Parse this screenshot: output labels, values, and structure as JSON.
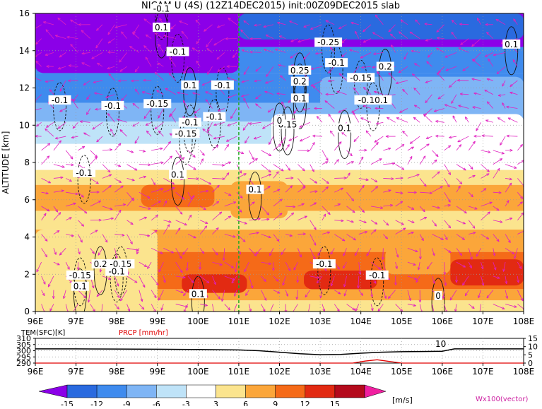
{
  "title": "NICAM U (4S) (12Z14DEC2015) init:00Z09DEC2015 slab",
  "chart_data": [
    {
      "type": "heatmap",
      "title": "NICAM U (4S) (12Z14DEC2015) init:00Z09DEC2015 slab",
      "ylabel": "ALTITUDE [km]",
      "xlim": [
        96,
        108
      ],
      "ylim": [
        0,
        16
      ],
      "x_ticks": [
        "96E",
        "97E",
        "98E",
        "99E",
        "100E",
        "101E",
        "102E",
        "103E",
        "104E",
        "105E",
        "106E",
        "107E",
        "108E"
      ],
      "y_ticks": [
        "0",
        "2",
        "4",
        "6",
        "8",
        "10",
        "12",
        "14",
        "16"
      ],
      "grid": true,
      "marker_longitude": 101,
      "bands": [
        {
          "z0": 0.0,
          "z1": 0.6,
          "u": 4
        },
        {
          "z0": 0.6,
          "z1": 1.2,
          "u": 8
        },
        {
          "z0": 1.2,
          "z1": 2.2,
          "u": 11
        },
        {
          "z0": 2.2,
          "z1": 3.2,
          "u": 9
        },
        {
          "z0": 3.2,
          "z1": 4.4,
          "u": 6
        },
        {
          "z0": 4.4,
          "z1": 5.4,
          "u": 4
        },
        {
          "z0": 5.4,
          "z1": 6.8,
          "u": 7
        },
        {
          "z0": 6.8,
          "z1": 7.6,
          "u": 4
        },
        {
          "z0": 7.6,
          "z1": 9.0,
          "u": 0
        },
        {
          "z0": 9.0,
          "z1": 10.2,
          "u": -4
        },
        {
          "z0": 10.2,
          "z1": 11.2,
          "u": -7
        },
        {
          "z0": 11.2,
          "z1": 12.8,
          "u": -10
        },
        {
          "z0": 12.8,
          "z1": 14.2,
          "u": -12
        },
        {
          "z0": 14.2,
          "z1": 16.0,
          "u": -16
        }
      ],
      "patches": [
        {
          "lon0": 98.6,
          "lon1": 100.4,
          "z0": 5.6,
          "z1": 6.8,
          "u": 10
        },
        {
          "lon0": 100.8,
          "lon1": 102.2,
          "z0": 5.0,
          "z1": 7.0,
          "u": 8
        },
        {
          "lon0": 99.6,
          "lon1": 101.2,
          "z0": 1.0,
          "z1": 2.0,
          "u": 13
        },
        {
          "lon0": 102.6,
          "lon1": 104.4,
          "z0": 1.2,
          "z1": 2.2,
          "u": 13
        },
        {
          "lon0": 106.2,
          "lon1": 108.0,
          "z0": 1.4,
          "z1": 2.8,
          "u": 12
        },
        {
          "lon0": 104.6,
          "lon1": 106.2,
          "z0": 2.0,
          "z1": 3.4,
          "u": 7
        },
        {
          "lon0": 96.0,
          "lon1": 99.0,
          "z0": 0.0,
          "z1": 4.4,
          "u": 4
        },
        {
          "lon0": 101.8,
          "lon1": 108.0,
          "z0": 8.6,
          "z1": 10.6,
          "u": -3
        },
        {
          "lon0": 103.0,
          "lon1": 108.0,
          "z0": 10.6,
          "z1": 12.6,
          "u": -8
        },
        {
          "lon0": 96.0,
          "lon1": 101.0,
          "z0": 12.8,
          "z1": 16.0,
          "u": -16
        },
        {
          "lon0": 101.0,
          "lon1": 108.0,
          "z0": 14.6,
          "z1": 16.0,
          "u": -15
        }
      ],
      "contour_labels": [
        {
          "lon": 96.6,
          "z": 11.3,
          "text": "-0.1"
        },
        {
          "lon": 97.9,
          "z": 11.0,
          "text": "-0.1"
        },
        {
          "lon": 99.1,
          "z": 15.2,
          "text": "0.1"
        },
        {
          "lon": 99.5,
          "z": 13.9,
          "text": "-0.1"
        },
        {
          "lon": 99.0,
          "z": 11.1,
          "text": "-0.15"
        },
        {
          "lon": 99.8,
          "z": 12.1,
          "text": "0.1"
        },
        {
          "lon": 100.6,
          "z": 12.1,
          "text": "-0.1"
        },
        {
          "lon": 100.4,
          "z": 10.4,
          "text": "-0.1"
        },
        {
          "lon": 99.8,
          "z": 10.1,
          "text": "-0.1"
        },
        {
          "lon": 99.7,
          "z": 9.5,
          "text": "-0.15"
        },
        {
          "lon": 97.2,
          "z": 7.4,
          "text": "-0.1"
        },
        {
          "lon": 99.5,
          "z": 7.3,
          "text": "0.1"
        },
        {
          "lon": 101.4,
          "z": 6.5,
          "text": "0.1"
        },
        {
          "lon": 99.1,
          "z": 16.2,
          "text": "-0.1"
        },
        {
          "lon": 102.5,
          "z": 12.9,
          "text": "0.25"
        },
        {
          "lon": 102.5,
          "z": 12.3,
          "text": "0.2"
        },
        {
          "lon": 102.5,
          "z": 11.4,
          "text": "0.1"
        },
        {
          "lon": 103.2,
          "z": 14.4,
          "text": "-0.25"
        },
        {
          "lon": 103.4,
          "z": 13.3,
          "text": "-0.1"
        },
        {
          "lon": 104.6,
          "z": 13.1,
          "text": "0.2"
        },
        {
          "lon": 104.0,
          "z": 12.5,
          "text": "-0.15"
        },
        {
          "lon": 104.3,
          "z": 11.3,
          "text": "-0.10.1"
        },
        {
          "lon": 102.2,
          "z": 10.0,
          "text": "0.15"
        },
        {
          "lon": 103.6,
          "z": 9.8,
          "text": "0.1"
        },
        {
          "lon": 102.0,
          "z": 10.2,
          "text": "0"
        },
        {
          "lon": 107.7,
          "z": 14.3,
          "text": "0.1"
        },
        {
          "lon": 97.6,
          "z": 2.5,
          "text": "0.2"
        },
        {
          "lon": 97.1,
          "z": 1.9,
          "text": "-0.15"
        },
        {
          "lon": 97.1,
          "z": 1.3,
          "text": "0.1"
        },
        {
          "lon": 98.1,
          "z": 2.5,
          "text": "-0.15"
        },
        {
          "lon": 98.0,
          "z": 2.1,
          "text": "-0.1"
        },
        {
          "lon": 100.0,
          "z": 0.9,
          "text": "0.1"
        },
        {
          "lon": 103.1,
          "z": 2.5,
          "text": "-0.1"
        },
        {
          "lon": 104.4,
          "z": 1.9,
          "text": "-0.1"
        },
        {
          "lon": 105.9,
          "z": 0.8,
          "text": "0"
        }
      ],
      "colorbar": {
        "unit": "[m/s]",
        "tick_labels": [
          "-15",
          "-12",
          "-9",
          "-6",
          "-3",
          "3",
          "6",
          "9",
          "12",
          "15"
        ],
        "colors": [
          "#8b00e8",
          "#2a6adf",
          "#3f8bee",
          "#7fb5f5",
          "#bfe3f8",
          "#ffffff",
          "#fbe48e",
          "#fba63a",
          "#f56a18",
          "#e22a12",
          "#b40a1c",
          "#f01fa0"
        ]
      },
      "vector_label": "Wx100(vector)",
      "vector_color": "#e020c0"
    },
    {
      "type": "line",
      "xlim": [
        96,
        108
      ],
      "x_ticks": [
        "96E",
        "97E",
        "98E",
        "99E",
        "100E",
        "101E",
        "102E",
        "103E",
        "104E",
        "105E",
        "106E",
        "107E",
        "108E"
      ],
      "left_label": "TEM(SFC)[K]",
      "left_ticks": [
        "310",
        "305",
        "300",
        "295",
        "290"
      ],
      "ylim_left": [
        290,
        310
      ],
      "right_label": "PRCP [mm/hr]",
      "right_ticks": [
        "15",
        "10",
        "5",
        "0"
      ],
      "ylim_right": [
        0,
        15
      ],
      "annotation": "10",
      "series": [
        {
          "name": "TEM(SFC)[K]",
          "color": "#000000",
          "x": [
            96,
            97,
            98,
            99,
            100,
            101,
            101.5,
            102,
            102.5,
            103,
            103.5,
            104,
            104.5,
            105,
            105.5,
            106,
            106.3,
            107,
            108
          ],
          "values": [
            301.5,
            301.5,
            301.4,
            301.2,
            301.0,
            300.6,
            300.0,
            298.8,
            297.6,
            296.8,
            297.0,
            298.0,
            298.8,
            299.2,
            299.4,
            299.6,
            301.5,
            301.5,
            301.5
          ]
        },
        {
          "name": "PRCP [mm/hr]",
          "color": "#e00000",
          "x": [
            96,
            101,
            103.8,
            104.1,
            104.4,
            104.7,
            105,
            106,
            108
          ],
          "values": [
            0,
            0,
            0,
            1.2,
            2.0,
            1.0,
            0,
            0,
            0
          ]
        }
      ]
    }
  ]
}
